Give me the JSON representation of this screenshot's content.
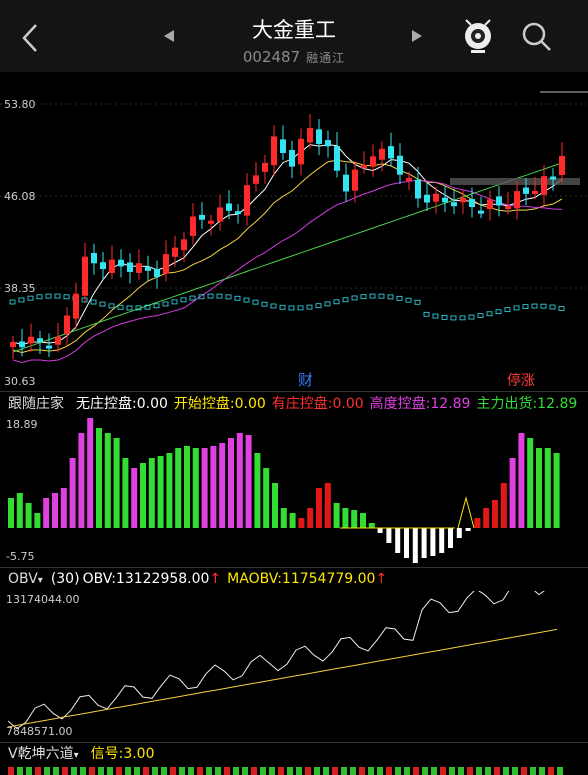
{
  "header": {
    "title": "大金重工",
    "code": "002487",
    "tag": "融通江"
  },
  "main_chart": {
    "price_labels": [
      "53.80",
      "46.08",
      "38.35",
      "30.63"
    ],
    "markers": [
      "财",
      "停涨"
    ],
    "colors": {
      "up": "#ff2a2a",
      "down": "#35e4f2",
      "ma5": "#ffffff",
      "ma10": "#f4d03f",
      "ma20": "#d23adf",
      "ma60": "#4cd14c"
    }
  },
  "indicator1": {
    "selector": "跟随庄家",
    "items": [
      {
        "label": "无庄控盘:0.00",
        "color": "#ffffff"
      },
      {
        "label": "开始控盘:0.00",
        "color": "#ffe600"
      },
      {
        "label": "有庄控盘:0.00",
        "color": "#ff3030"
      },
      {
        "label": "高度控盘:12.89",
        "color": "#e040e0"
      },
      {
        "label": "主力出货:12.89",
        "color": "#33dd33"
      }
    ],
    "axis": [
      "18.89",
      "-5.75"
    ]
  },
  "indicator2": {
    "selector": "OBV",
    "period": "(30)",
    "obv": "OBV:13122958.00",
    "maobv": "MAOBV:11754779.00",
    "axis": [
      "13174044.00",
      "7848571.00"
    ]
  },
  "indicator3": {
    "selector": "V乾坤六道",
    "signal": "信号:3.00"
  }
}
